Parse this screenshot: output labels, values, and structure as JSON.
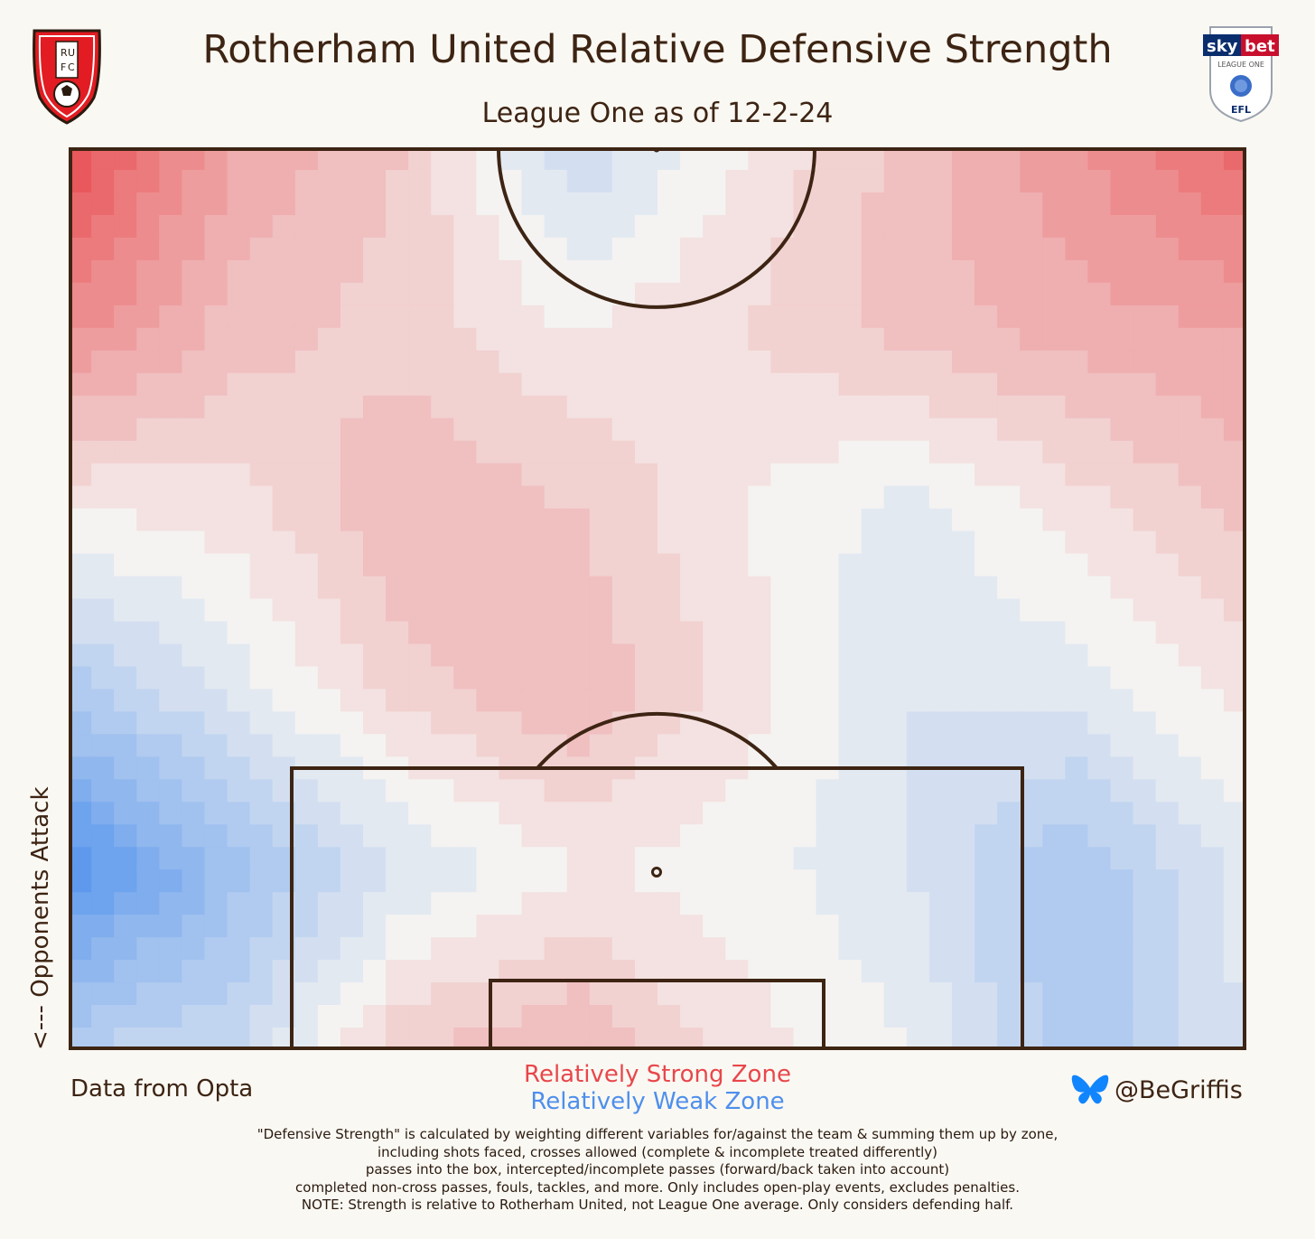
{
  "header": {
    "title": "Rotherham United Relative Defensive Strength",
    "subtitle": "League One as of 12-2-24"
  },
  "logos": {
    "left_letters": [
      "R",
      "U",
      "F",
      "C"
    ],
    "right_top": "sky",
    "right_top2": "bet",
    "right_mid": "LEAGUE ONE",
    "right_bottom": "EFL"
  },
  "axis": {
    "ylabel": "<--- Opponents Attack"
  },
  "footer": {
    "source": "Data from Opta",
    "legend_strong": "Relatively Strong Zone",
    "legend_weak": "Relatively Weak Zone",
    "handle": "@BeGriffis",
    "notes": [
      "\"Defensive Strength\" is calculated by weighting different variables for/against the team & summing them up by zone,",
      "including shots faced, crosses allowed (complete & incomplete treated differently)",
      "passes into the box, intercepted/incomplete passes (forward/back taken into account)",
      "completed non-cross passes, fouls, tackles, and more. Only includes open-play events, excludes penalties.",
      "NOTE: Strength is relative to Rotherham United, not League One average. Only considers defending half."
    ]
  },
  "colors": {
    "strong": "#e8474b",
    "weak": "#4d8fec",
    "neutral": "#f2f4f6",
    "line": "#3d2413",
    "background": "#faf8f3"
  },
  "chart_data": {
    "type": "heatmap",
    "description_of_values": "relative defensive strength (positive = strong, negative = weak)",
    "level_range": [
      -1,
      1
    ],
    "grid": {
      "cols": 8,
      "rows": 6,
      "values": [
        [
          0.95,
          0.45,
          0.25,
          -0.25,
          0.05,
          0.3,
          0.55,
          0.8
        ],
        [
          0.6,
          0.3,
          0.2,
          0.05,
          0.15,
          0.3,
          0.4,
          0.45
        ],
        [
          0.05,
          0.1,
          0.35,
          0.25,
          0.05,
          -0.1,
          0.1,
          0.3
        ],
        [
          -0.4,
          -0.1,
          0.2,
          0.35,
          0.1,
          -0.15,
          -0.1,
          0.1
        ],
        [
          -0.95,
          -0.5,
          -0.15,
          0.05,
          0.0,
          -0.15,
          -0.45,
          -0.1
        ],
        [
          -0.35,
          -0.25,
          0.25,
          0.35,
          0.1,
          -0.05,
          -0.45,
          -0.15
        ]
      ]
    }
  }
}
